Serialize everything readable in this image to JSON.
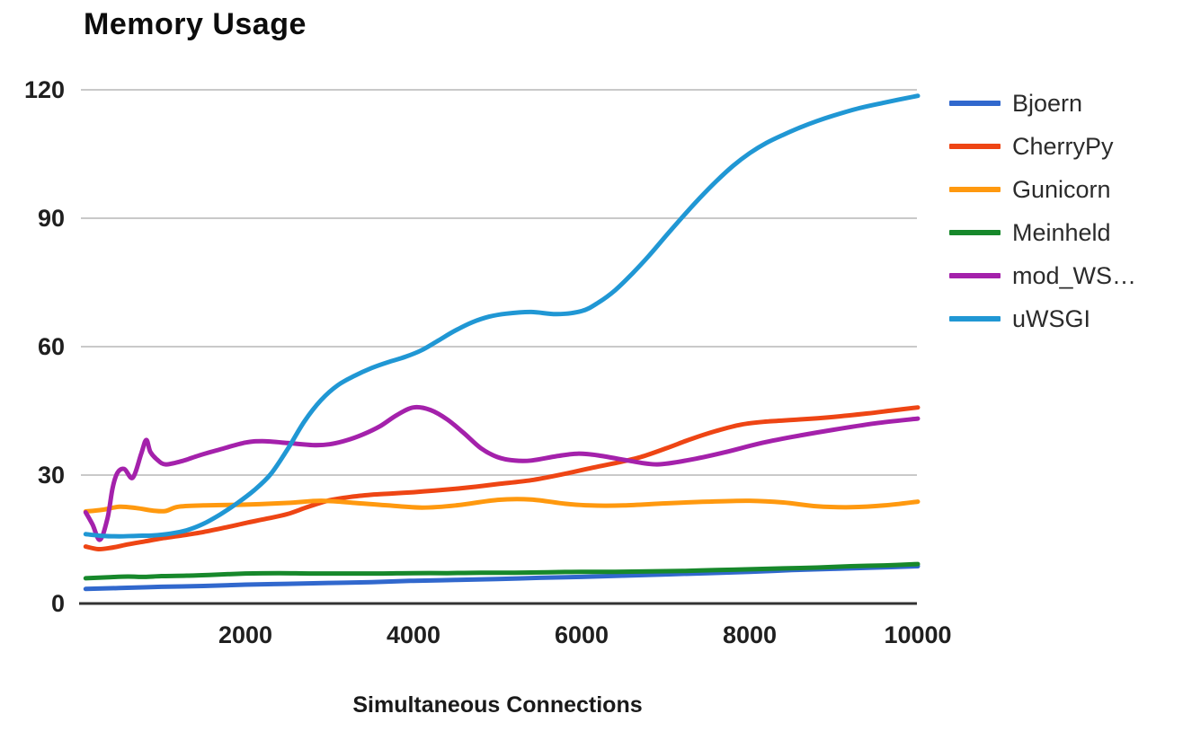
{
  "chart_data": {
    "type": "line",
    "title": "Memory Usage",
    "xlabel": "Simultaneous Connections",
    "ylabel": "",
    "xlim": [
      0,
      10000
    ],
    "ylim": [
      0,
      120
    ],
    "x_ticks": [
      2000,
      4000,
      6000,
      8000,
      10000
    ],
    "y_ticks": [
      0,
      30,
      60,
      90,
      120
    ],
    "grid": "horizontal",
    "legend_position": "right",
    "background_color": "#ffffff",
    "grid_color": "#c9c9c9",
    "axis_line_color": "#333333",
    "tick_label_color": "#1f1f1f",
    "series": [
      {
        "name": "Bjoern",
        "color": "#3168cd",
        "points": [
          [
            100,
            3.4
          ],
          [
            500,
            3.6
          ],
          [
            1000,
            3.9
          ],
          [
            1500,
            4.1
          ],
          [
            2000,
            4.4
          ],
          [
            2500,
            4.6
          ],
          [
            3000,
            4.8
          ],
          [
            3500,
            5.0
          ],
          [
            4000,
            5.3
          ],
          [
            4500,
            5.5
          ],
          [
            5000,
            5.7
          ],
          [
            5500,
            6.0
          ],
          [
            6000,
            6.2
          ],
          [
            6500,
            6.5
          ],
          [
            7000,
            6.8
          ],
          [
            7500,
            7.1
          ],
          [
            8000,
            7.4
          ],
          [
            8500,
            7.8
          ],
          [
            9000,
            8.1
          ],
          [
            9500,
            8.4
          ],
          [
            10000,
            8.7
          ]
        ]
      },
      {
        "name": "CherryPy",
        "color": "#ee4514",
        "points": [
          [
            100,
            13.3
          ],
          [
            250,
            12.7
          ],
          [
            400,
            13.0
          ],
          [
            600,
            13.8
          ],
          [
            800,
            14.5
          ],
          [
            1000,
            15.2
          ],
          [
            1250,
            15.9
          ],
          [
            1500,
            16.7
          ],
          [
            1750,
            17.7
          ],
          [
            2000,
            18.8
          ],
          [
            2250,
            19.8
          ],
          [
            2500,
            20.9
          ],
          [
            2750,
            22.6
          ],
          [
            3000,
            24.1
          ],
          [
            3250,
            24.9
          ],
          [
            3500,
            25.4
          ],
          [
            3750,
            25.7
          ],
          [
            4000,
            26.0
          ],
          [
            4250,
            26.4
          ],
          [
            4500,
            26.8
          ],
          [
            4750,
            27.3
          ],
          [
            5000,
            27.9
          ],
          [
            5400,
            28.8
          ],
          [
            5800,
            30.3
          ],
          [
            6100,
            31.6
          ],
          [
            6400,
            32.8
          ],
          [
            6700,
            34.2
          ],
          [
            7000,
            36.2
          ],
          [
            7300,
            38.4
          ],
          [
            7600,
            40.3
          ],
          [
            7900,
            41.8
          ],
          [
            8200,
            42.5
          ],
          [
            8600,
            43.0
          ],
          [
            9000,
            43.6
          ],
          [
            9400,
            44.4
          ],
          [
            9700,
            45.1
          ],
          [
            10000,
            45.8
          ]
        ]
      },
      {
        "name": "Gunicorn",
        "color": "#ff990f",
        "points": [
          [
            100,
            21.5
          ],
          [
            300,
            21.9
          ],
          [
            500,
            22.6
          ],
          [
            700,
            22.3
          ],
          [
            900,
            21.7
          ],
          [
            1050,
            21.6
          ],
          [
            1200,
            22.6
          ],
          [
            1500,
            22.9
          ],
          [
            2000,
            23.1
          ],
          [
            2500,
            23.5
          ],
          [
            2900,
            24.0
          ],
          [
            3300,
            23.5
          ],
          [
            3700,
            22.9
          ],
          [
            4100,
            22.4
          ],
          [
            4500,
            22.9
          ],
          [
            5000,
            24.2
          ],
          [
            5400,
            24.3
          ],
          [
            5800,
            23.3
          ],
          [
            6100,
            22.9
          ],
          [
            6500,
            22.9
          ],
          [
            7000,
            23.4
          ],
          [
            7500,
            23.8
          ],
          [
            8000,
            24.0
          ],
          [
            8400,
            23.6
          ],
          [
            8800,
            22.7
          ],
          [
            9200,
            22.5
          ],
          [
            9600,
            22.9
          ],
          [
            10000,
            23.8
          ]
        ]
      },
      {
        "name": "Meinheld",
        "color": "#17882b",
        "points": [
          [
            100,
            5.9
          ],
          [
            350,
            6.1
          ],
          [
            600,
            6.3
          ],
          [
            800,
            6.2
          ],
          [
            1000,
            6.4
          ],
          [
            1300,
            6.5
          ],
          [
            1600,
            6.7
          ],
          [
            2000,
            7.0
          ],
          [
            2400,
            7.1
          ],
          [
            2800,
            7.0
          ],
          [
            3200,
            7.0
          ],
          [
            3600,
            7.0
          ],
          [
            4000,
            7.1
          ],
          [
            4400,
            7.1
          ],
          [
            4800,
            7.2
          ],
          [
            5200,
            7.2
          ],
          [
            5600,
            7.3
          ],
          [
            6000,
            7.4
          ],
          [
            6400,
            7.4
          ],
          [
            6800,
            7.5
          ],
          [
            7200,
            7.6
          ],
          [
            7600,
            7.8
          ],
          [
            8000,
            8.0
          ],
          [
            8400,
            8.2
          ],
          [
            8800,
            8.4
          ],
          [
            9200,
            8.7
          ],
          [
            9600,
            8.9
          ],
          [
            10000,
            9.2
          ]
        ]
      },
      {
        "name": "mod_WS…",
        "color": "#a421ab",
        "points": [
          [
            100,
            21.3
          ],
          [
            180,
            18.5
          ],
          [
            270,
            14.9
          ],
          [
            360,
            20.0
          ],
          [
            420,
            27.0
          ],
          [
            480,
            30.6
          ],
          [
            560,
            31.4
          ],
          [
            660,
            29.4
          ],
          [
            760,
            35.0
          ],
          [
            820,
            38.2
          ],
          [
            870,
            35.4
          ],
          [
            950,
            33.6
          ],
          [
            1050,
            32.5
          ],
          [
            1250,
            33.3
          ],
          [
            1450,
            34.6
          ],
          [
            1700,
            36.0
          ],
          [
            2000,
            37.6
          ],
          [
            2200,
            37.9
          ],
          [
            2500,
            37.5
          ],
          [
            2800,
            37.0
          ],
          [
            3000,
            37.2
          ],
          [
            3200,
            38.1
          ],
          [
            3400,
            39.5
          ],
          [
            3600,
            41.4
          ],
          [
            3800,
            44.0
          ],
          [
            4000,
            45.8
          ],
          [
            4200,
            45.2
          ],
          [
            4400,
            43.0
          ],
          [
            4600,
            39.8
          ],
          [
            4800,
            36.3
          ],
          [
            5000,
            34.2
          ],
          [
            5200,
            33.4
          ],
          [
            5400,
            33.4
          ],
          [
            5700,
            34.4
          ],
          [
            5950,
            35.0
          ],
          [
            6200,
            34.6
          ],
          [
            6550,
            33.4
          ],
          [
            6900,
            32.5
          ],
          [
            7300,
            33.6
          ],
          [
            7700,
            35.3
          ],
          [
            8100,
            37.3
          ],
          [
            8500,
            38.9
          ],
          [
            9000,
            40.6
          ],
          [
            9500,
            42.1
          ],
          [
            10000,
            43.2
          ]
        ]
      },
      {
        "name": "uWSGI",
        "color": "#2097d4",
        "points": [
          [
            100,
            16.2
          ],
          [
            300,
            15.8
          ],
          [
            500,
            15.7
          ],
          [
            700,
            15.8
          ],
          [
            900,
            15.9
          ],
          [
            1100,
            16.3
          ],
          [
            1300,
            17.1
          ],
          [
            1500,
            18.6
          ],
          [
            1700,
            20.8
          ],
          [
            1900,
            23.4
          ],
          [
            2100,
            26.4
          ],
          [
            2300,
            30.2
          ],
          [
            2500,
            36.0
          ],
          [
            2700,
            42.5
          ],
          [
            2900,
            47.5
          ],
          [
            3100,
            51.0
          ],
          [
            3300,
            53.2
          ],
          [
            3500,
            55.0
          ],
          [
            3700,
            56.4
          ],
          [
            3900,
            57.6
          ],
          [
            4100,
            59.2
          ],
          [
            4300,
            61.5
          ],
          [
            4500,
            63.8
          ],
          [
            4700,
            65.7
          ],
          [
            4900,
            67.0
          ],
          [
            5100,
            67.7
          ],
          [
            5400,
            68.1
          ],
          [
            5700,
            67.6
          ],
          [
            6000,
            68.3
          ],
          [
            6200,
            70.3
          ],
          [
            6400,
            73.2
          ],
          [
            6600,
            77.0
          ],
          [
            6800,
            81.2
          ],
          [
            7000,
            85.8
          ],
          [
            7200,
            90.3
          ],
          [
            7400,
            94.6
          ],
          [
            7600,
            98.6
          ],
          [
            7800,
            102.2
          ],
          [
            8000,
            105.2
          ],
          [
            8200,
            107.6
          ],
          [
            8400,
            109.5
          ],
          [
            8600,
            111.2
          ],
          [
            8800,
            112.7
          ],
          [
            9000,
            114.0
          ],
          [
            9300,
            115.7
          ],
          [
            9600,
            117.0
          ],
          [
            10000,
            118.6
          ]
        ]
      }
    ]
  }
}
